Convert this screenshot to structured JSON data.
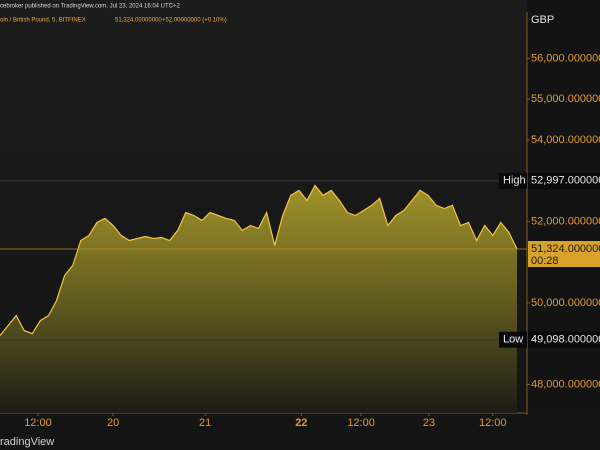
{
  "chart_data": {
    "type": "area",
    "header": "cebroker published on TradingView.com, Jul 23, 2024 16:04 UTC+2",
    "symbol": "oin / British Pound, 5, BITFINEX",
    "quote_price": "51,324.00000000",
    "quote_change": "+52.00000000 (+0.10%)",
    "currency": "GBP",
    "footer": "radingView",
    "color": "#f5c542",
    "values": [
      49199,
      49445,
      49690,
      49322,
      49248,
      49568,
      49690,
      50059,
      50673,
      50919,
      51533,
      51656,
      51975,
      52074,
      51902,
      51656,
      51533,
      51582,
      51631,
      51582,
      51607,
      51533,
      51779,
      52221,
      52147,
      52025,
      52221,
      52147,
      52074,
      52025,
      51779,
      51902,
      51828,
      52221,
      51410,
      52147,
      52639,
      52762,
      52516,
      52885,
      52639,
      52762,
      52516,
      52221,
      52147,
      52270,
      52393,
      52565,
      51902,
      52147,
      52270,
      52516,
      52762,
      52639,
      52393,
      52319,
      52393,
      51902,
      51975,
      51533,
      51902,
      51656,
      51975,
      51730,
      51324
    ],
    "xlim": [
      0,
      64
    ],
    "xticks": [
      {
        "value": 4.7,
        "label": "12:00"
      },
      {
        "value": 14.0,
        "label": "20"
      },
      {
        "value": 25.4,
        "label": "21"
      },
      {
        "value": 37.3,
        "label": "22"
      },
      {
        "value": 44.7,
        "label": "12:00"
      },
      {
        "value": 53.1,
        "label": "23"
      },
      {
        "value": 61.0,
        "label": "12:00"
      }
    ],
    "ylim": [
      47300,
      57140
    ],
    "yticks": [
      {
        "value": 48000,
        "label": "48,000.00000000"
      },
      {
        "value": 50000,
        "label": "50,000.00000000"
      },
      {
        "value": 52000,
        "label": "52,000.00000000"
      },
      {
        "value": 54000,
        "label": "54,000.00000000"
      },
      {
        "value": 55000,
        "label": "55,000.00000000"
      },
      {
        "value": 56000,
        "label": "56,000.00000000"
      }
    ],
    "high": {
      "name": "High",
      "value": 52997,
      "label": "52,997.00000000"
    },
    "low": {
      "name": "Low",
      "value": 49098,
      "label": "49,098.00000000"
    },
    "last": {
      "value": 51324,
      "label": "51,324.00000000",
      "countdown": "00:28"
    }
  }
}
